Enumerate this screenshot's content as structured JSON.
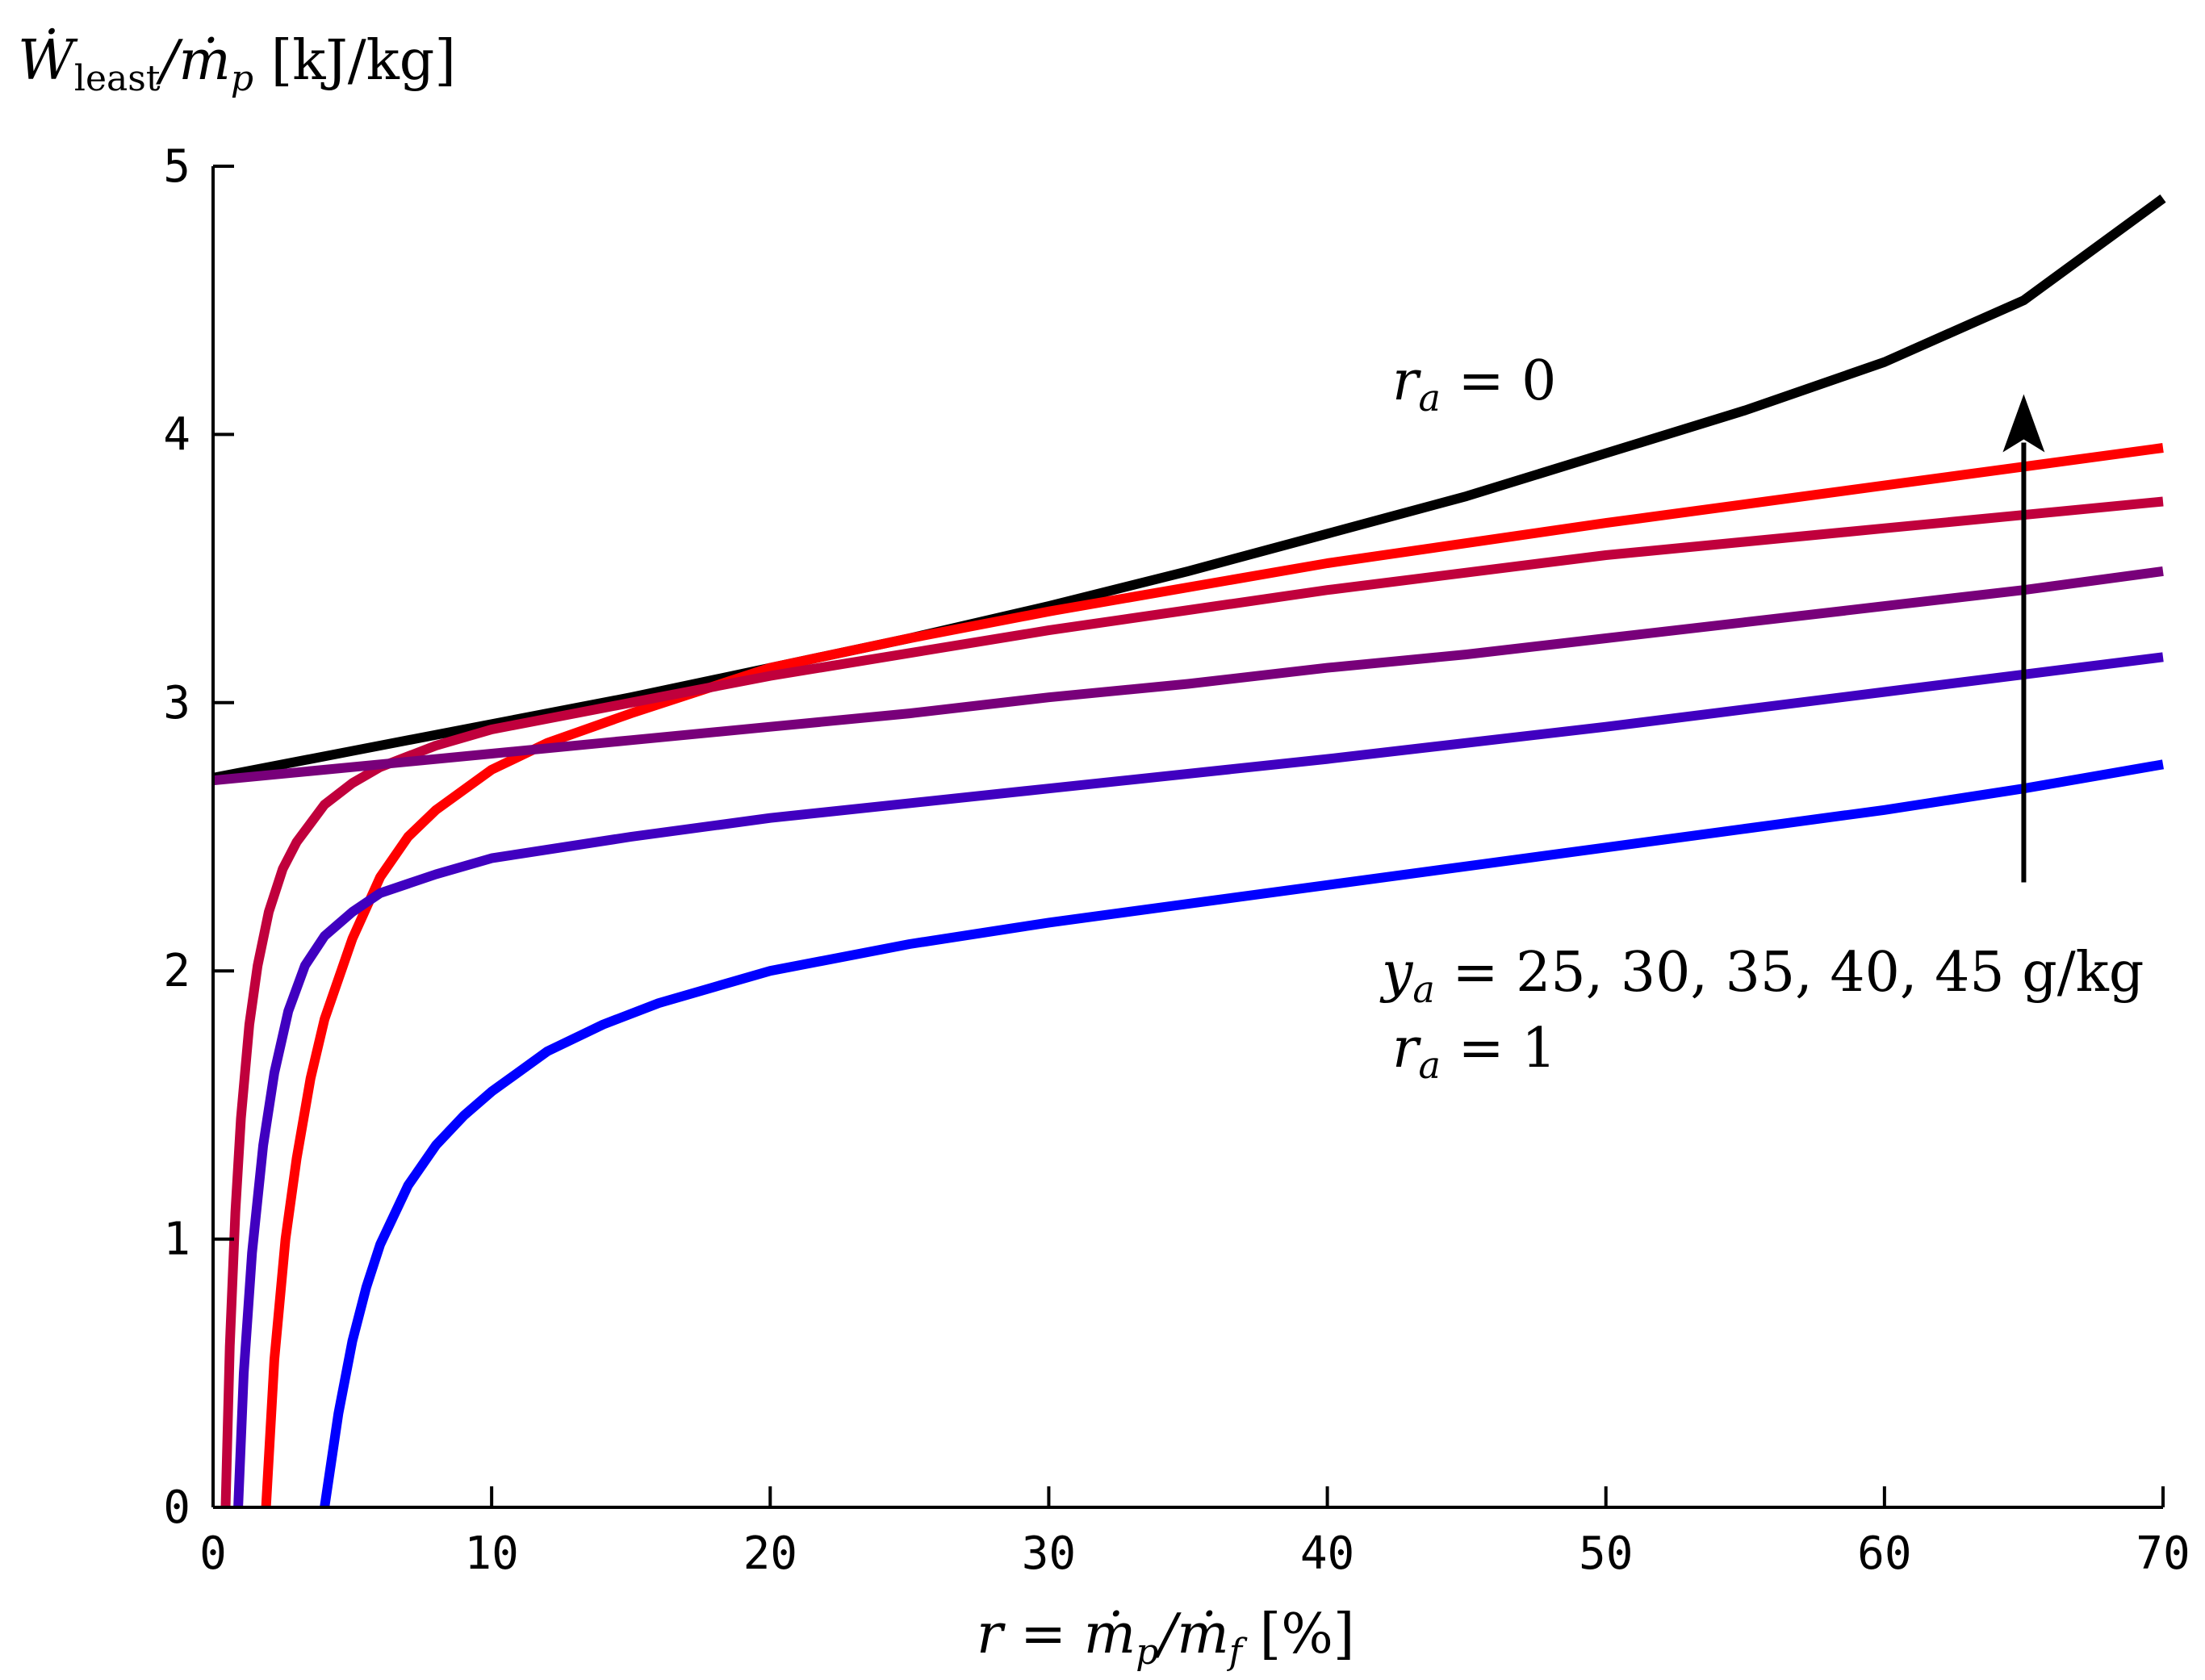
{
  "chart_data": {
    "type": "line",
    "ylabel": {
      "main": "Ẇ",
      "sub": "least",
      "mid": "/ṁ",
      "sub2": "p",
      "unit": " [kJ/kg]"
    },
    "xlabel": {
      "pre": "r = ṁ",
      "sub1": "p",
      "mid": "/ṁ",
      "sub2": "f",
      "unit": " [%]"
    },
    "xlim": [
      0,
      70
    ],
    "ylim": [
      0,
      5
    ],
    "xticks": [
      0,
      10,
      20,
      30,
      40,
      50,
      60,
      70
    ],
    "yticks": [
      0,
      1,
      2,
      3,
      4,
      5
    ],
    "grid": false,
    "annotations": {
      "ra0": {
        "var": "r",
        "sub": "a",
        "rest": " = 0"
      },
      "ra1": {
        "var": "r",
        "sub": "a",
        "rest": " = 1"
      },
      "ya": {
        "var": "y",
        "sub": "a",
        "rest": " = 25, 30, 35, 40, 45 g/kg"
      },
      "arrow": {
        "x": 65,
        "y_from": 2.33,
        "y_to": 4.15
      }
    },
    "series": [
      {
        "color": "#000000",
        "x": [
          0,
          5,
          10,
          15,
          20,
          25,
          30,
          35,
          40,
          45,
          50,
          55,
          60,
          65,
          70
        ],
        "y": [
          2.72,
          2.82,
          2.92,
          3.02,
          3.13,
          3.24,
          3.36,
          3.49,
          3.63,
          3.77,
          3.93,
          4.09,
          4.27,
          4.5,
          4.88
        ]
      },
      {
        "color": "#ff0000",
        "x": [
          1.9,
          2.2,
          2.6,
          3,
          3.5,
          4,
          5,
          6,
          7,
          8,
          10,
          12,
          15,
          20,
          25,
          30,
          40,
          50,
          60,
          70
        ],
        "y": [
          0,
          0.55,
          1.0,
          1.3,
          1.6,
          1.82,
          2.12,
          2.35,
          2.5,
          2.6,
          2.75,
          2.85,
          2.96,
          3.13,
          3.24,
          3.34,
          3.52,
          3.67,
          3.81,
          3.95
        ]
      },
      {
        "color": "#c0003c",
        "x": [
          0.45,
          0.6,
          0.8,
          1,
          1.3,
          1.6,
          2,
          2.5,
          3,
          4,
          5,
          6,
          8,
          10,
          15,
          20,
          30,
          40,
          50,
          60,
          70
        ],
        "y": [
          0,
          0.6,
          1.1,
          1.45,
          1.8,
          2.02,
          2.22,
          2.38,
          2.48,
          2.62,
          2.7,
          2.76,
          2.84,
          2.9,
          3.0,
          3.1,
          3.27,
          3.42,
          3.55,
          3.65,
          3.75
        ]
      },
      {
        "color": "#78007a",
        "x": [
          0,
          5,
          10,
          15,
          20,
          25,
          30,
          35,
          40,
          45,
          50,
          55,
          60,
          65,
          70
        ],
        "y": [
          2.71,
          2.76,
          2.81,
          2.86,
          2.91,
          2.96,
          3.02,
          3.07,
          3.13,
          3.18,
          3.24,
          3.3,
          3.36,
          3.42,
          3.49
        ]
      },
      {
        "color": "#4000c0",
        "x": [
          0.9,
          1.1,
          1.4,
          1.8,
          2.2,
          2.7,
          3.3,
          4,
          5,
          6,
          8,
          10,
          15,
          20,
          30,
          40,
          50,
          60,
          70
        ],
        "y": [
          0,
          0.5,
          0.95,
          1.35,
          1.62,
          1.85,
          2.02,
          2.13,
          2.22,
          2.29,
          2.36,
          2.42,
          2.5,
          2.57,
          2.68,
          2.79,
          2.91,
          3.04,
          3.17
        ]
      },
      {
        "color": "#0000ff",
        "x": [
          4,
          4.5,
          5,
          5.5,
          6,
          7,
          8,
          9,
          10,
          12,
          14,
          16,
          18,
          20,
          25,
          30,
          35,
          40,
          45,
          50,
          55,
          60,
          65,
          70
        ],
        "y": [
          0,
          0.35,
          0.62,
          0.82,
          0.98,
          1.2,
          1.35,
          1.46,
          1.55,
          1.7,
          1.8,
          1.88,
          1.94,
          2.0,
          2.1,
          2.18,
          2.25,
          2.32,
          2.39,
          2.46,
          2.53,
          2.6,
          2.68,
          2.77
        ]
      }
    ]
  }
}
